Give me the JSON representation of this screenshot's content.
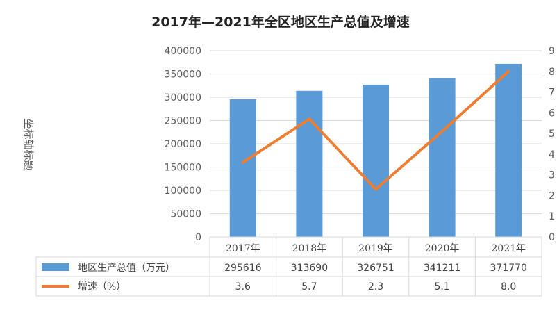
{
  "chart_data": {
    "type": "bar",
    "title": "2017年—2021年全区地区生产总值及增速",
    "ylabel": "坐标轴标题",
    "categories": [
      "2017年",
      "2018年",
      "2019年",
      "2020年",
      "2021年"
    ],
    "ylim": [
      0,
      400000
    ],
    "y2lim": [
      0,
      9
    ],
    "yticks": [
      "400000",
      "350000",
      "300000",
      "250000",
      "200000",
      "150000",
      "100000",
      "50000",
      "0"
    ],
    "y2ticks": [
      "9",
      "8",
      "7",
      "6",
      "5",
      "4",
      "3",
      "2",
      "1",
      "0"
    ],
    "grid": true,
    "legend": "table-bottom",
    "series": [
      {
        "name": "地区生产总值（万元）",
        "type": "bar",
        "axis": "left",
        "color": "#5b9bd5",
        "values": [
          295616,
          313690,
          326751,
          341211,
          371770
        ],
        "labels": [
          "295616",
          "313690",
          "326751",
          "341211",
          "371770"
        ]
      },
      {
        "name": "增速（%）",
        "type": "line",
        "axis": "right",
        "color": "#ed7d31",
        "values": [
          3.6,
          5.7,
          2.3,
          5.1,
          8.0
        ],
        "labels": [
          "3.6",
          "5.7",
          "2.3",
          "5.1",
          "8.0"
        ]
      }
    ]
  }
}
